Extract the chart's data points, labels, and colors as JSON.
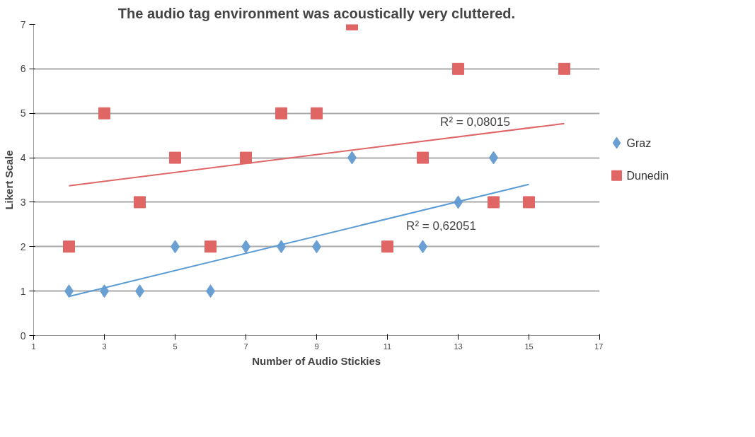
{
  "chart_data": {
    "type": "scatter",
    "title": "The audio tag environment was acoustically very cluttered.",
    "xlabel": "Number of Audio Stickies",
    "ylabel": "Likert Scale",
    "xlim": [
      1,
      17
    ],
    "xticks": [
      1,
      3,
      5,
      7,
      9,
      11,
      13,
      15,
      17
    ],
    "ylim": [
      0,
      7
    ],
    "yticks": [
      0,
      1,
      2,
      3,
      4,
      5,
      6,
      7
    ],
    "grid": "y",
    "legend": "right",
    "series": [
      {
        "name": "Graz",
        "color": "#6a9fd4",
        "marker": "diamond",
        "x": [
          2,
          3,
          4,
          5,
          6,
          7,
          8,
          9,
          10,
          12,
          13,
          14
        ],
        "values": [
          1,
          1,
          1,
          2,
          1,
          2,
          2,
          2,
          4,
          2,
          3,
          4
        ]
      },
      {
        "name": "Dunedin",
        "color": "#e06666",
        "marker": "square",
        "x": [
          2,
          3,
          4,
          5,
          6,
          7,
          8,
          9,
          10,
          11,
          12,
          13,
          14,
          15,
          16
        ],
        "values": [
          2,
          5,
          3,
          4,
          2,
          4,
          5,
          5,
          7,
          2,
          4,
          6,
          3,
          3,
          6
        ]
      },
      {
        "type": "line",
        "color": "#e06666",
        "marker": "none",
        "x": [
          2,
          16
        ],
        "values": [
          3.37,
          4.77
        ]
      },
      {
        "type": "line",
        "color": "#5b9bd5",
        "marker": "none",
        "x": [
          2,
          15
        ],
        "values": [
          0.88,
          3.4
        ]
      }
    ],
    "annotations": [
      "R² = 0,08015",
      "R² = 0,62051"
    ]
  }
}
